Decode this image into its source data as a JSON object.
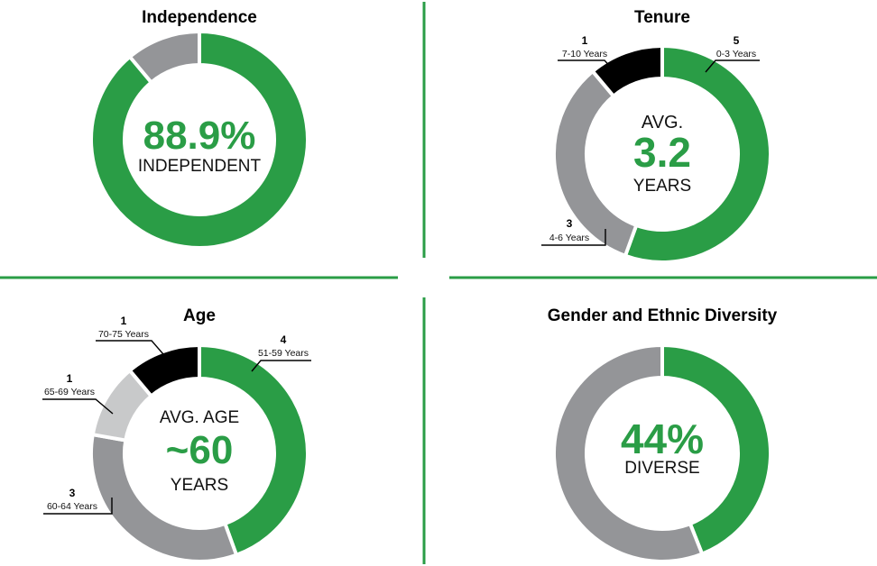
{
  "colors": {
    "green": "#2a9d46",
    "gray": "#949598",
    "light_gray": "#c8c9ca",
    "black": "#000000",
    "divider": "#2a9d46"
  },
  "chart_data": [
    {
      "type": "pie",
      "title": "Independence",
      "center_value": "88.9%",
      "center_text": "INDEPENDENT",
      "slices": [
        {
          "value": 88.9,
          "color": "#2a9d46"
        },
        {
          "value": 11.1,
          "color": "#949598"
        }
      ]
    },
    {
      "type": "pie",
      "title": "Tenure",
      "center_top": "AVG.",
      "center_value": "3.2",
      "center_text": "YEARS",
      "slices": [
        {
          "count": "5",
          "label": "0-3 Years",
          "value": 5,
          "color": "#2a9d46"
        },
        {
          "count": "3",
          "label": "4-6 Years",
          "value": 3,
          "color": "#949598"
        },
        {
          "count": "1",
          "label": "7-10 Years",
          "value": 1,
          "color": "#000000"
        }
      ]
    },
    {
      "type": "pie",
      "title": "Age",
      "center_top": "AVG. AGE",
      "center_value": "~60",
      "center_text": "YEARS",
      "slices": [
        {
          "count": "4",
          "label": "51-59 Years",
          "value": 4,
          "color": "#2a9d46"
        },
        {
          "count": "3",
          "label": "60-64 Years",
          "value": 3,
          "color": "#949598"
        },
        {
          "count": "1",
          "label": "65-69 Years",
          "value": 1,
          "color": "#c8c9ca"
        },
        {
          "count": "1",
          "label": "70-75 Years",
          "value": 1,
          "color": "#000000"
        }
      ]
    },
    {
      "type": "pie",
      "title": "Gender and Ethnic Diversity",
      "center_value": "44%",
      "center_text": "DIVERSE",
      "slices": [
        {
          "value": 44,
          "color": "#2a9d46"
        },
        {
          "value": 56,
          "color": "#949598"
        }
      ]
    }
  ]
}
